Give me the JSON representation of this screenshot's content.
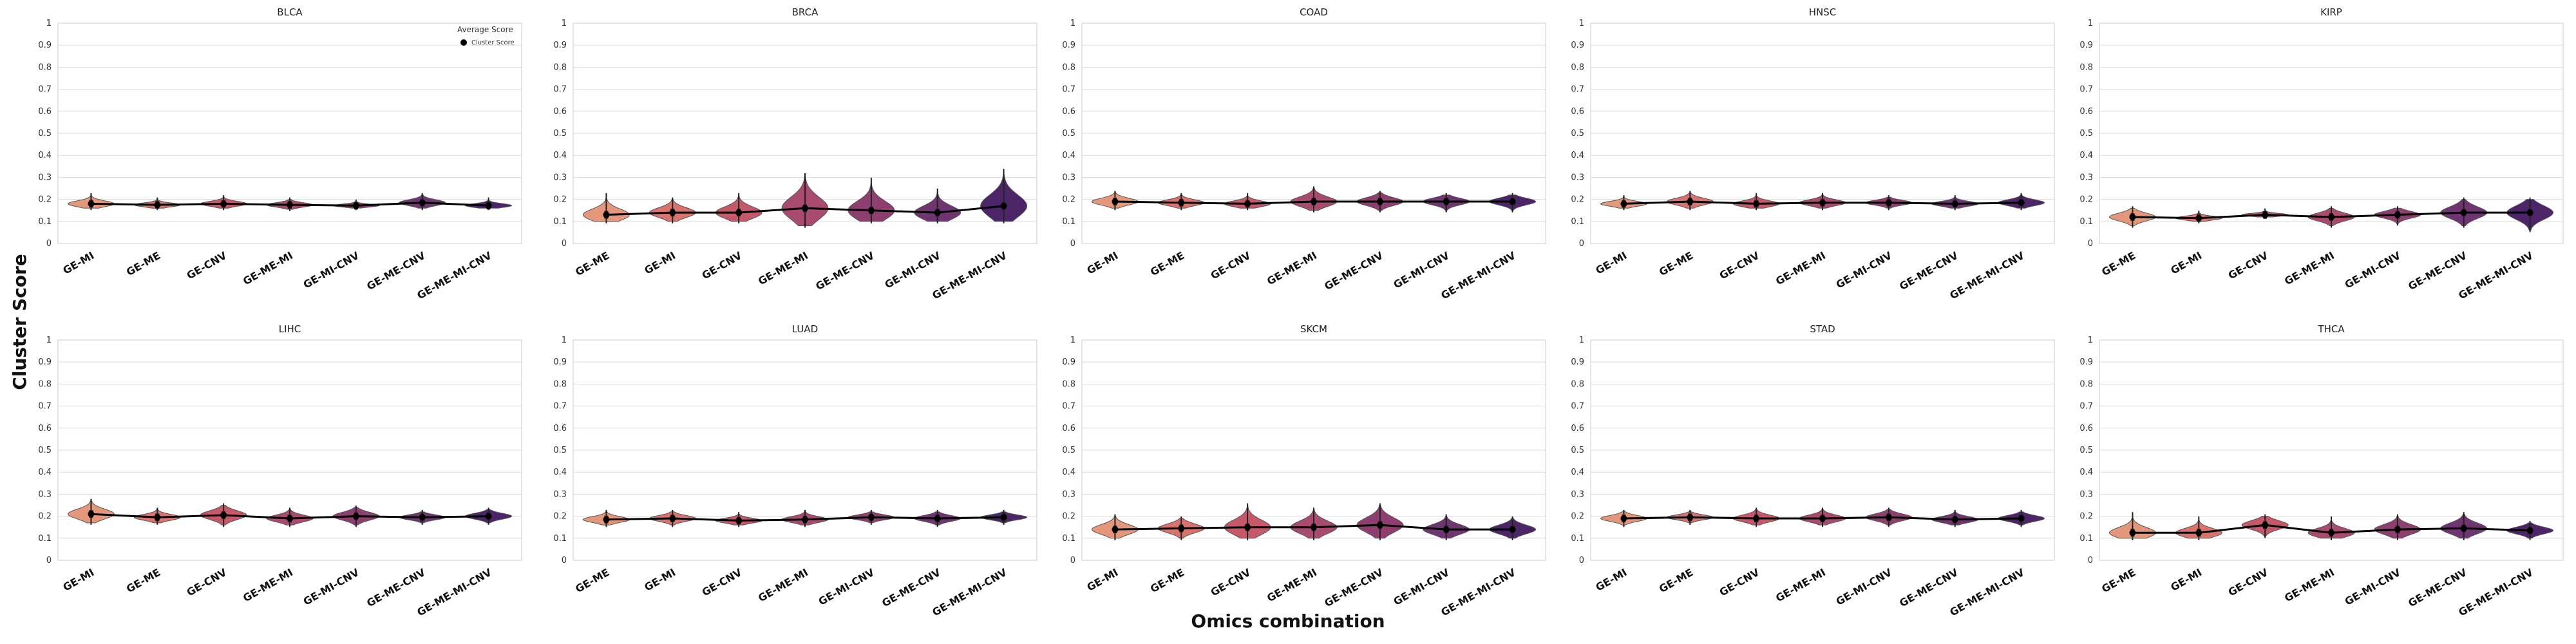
{
  "figure": {
    "ylabel": "Cluster Score",
    "xlabel": "Omics combination"
  },
  "legend": {
    "title": "Average Score",
    "entry": "Cluster Score",
    "placement": "top-right of first panel"
  },
  "palette": [
    "#e5977b",
    "#d8736e",
    "#c5596a",
    "#a94b6f",
    "#8e3f70",
    "#6f3570",
    "#4b2568"
  ],
  "chart_data": [
    {
      "type": "violin",
      "title": "BLCA",
      "ylim": [
        0,
        1
      ],
      "grid": true,
      "yticks": [
        "0",
        "0.1",
        "0.2",
        "0.3",
        "0.4",
        "0.5",
        "0.6",
        "0.7",
        "0.8",
        "0.9",
        "1"
      ],
      "categories": [
        "GE-MI",
        "GE-ME",
        "GE-CNV",
        "GE-ME-MI",
        "GE-MI-CNV",
        "GE-ME-CNV",
        "GE-ME-MI-CNV"
      ],
      "means": [
        0.18,
        0.175,
        0.18,
        0.175,
        0.172,
        0.185,
        0.172
      ],
      "ranges": [
        [
          0.16,
          0.22
        ],
        [
          0.16,
          0.2
        ],
        [
          0.16,
          0.21
        ],
        [
          0.155,
          0.2
        ],
        [
          0.16,
          0.19
        ],
        [
          0.16,
          0.22
        ],
        [
          0.16,
          0.2
        ]
      ]
    },
    {
      "type": "violin",
      "title": "BRCA",
      "ylim": [
        0,
        1
      ],
      "grid": true,
      "yticks": [
        "0",
        "0.1",
        "0.2",
        "0.3",
        "0.4",
        "0.5",
        "0.6",
        "0.7",
        "0.8",
        "0.9",
        "1"
      ],
      "categories": [
        "GE-ME",
        "GE-MI",
        "GE-CNV",
        "GE-ME-MI",
        "GE-ME-CNV",
        "GE-MI-CNV",
        "GE-ME-MI-CNV"
      ],
      "means": [
        0.13,
        0.14,
        0.14,
        0.16,
        0.15,
        0.14,
        0.17
      ],
      "ranges": [
        [
          0.1,
          0.22
        ],
        [
          0.1,
          0.2
        ],
        [
          0.1,
          0.22
        ],
        [
          0.08,
          0.31
        ],
        [
          0.1,
          0.29
        ],
        [
          0.1,
          0.24
        ],
        [
          0.1,
          0.33
        ]
      ]
    },
    {
      "type": "violin",
      "title": "COAD",
      "ylim": [
        0,
        1
      ],
      "grid": true,
      "yticks": [
        "0",
        "0.1",
        "0.2",
        "0.3",
        "0.4",
        "0.5",
        "0.6",
        "0.7",
        "0.8",
        "0.9",
        "1"
      ],
      "categories": [
        "GE-MI",
        "GE-ME",
        "GE-CNV",
        "GE-ME-MI",
        "GE-ME-CNV",
        "GE-MI-CNV",
        "GE-ME-MI-CNV"
      ],
      "means": [
        0.19,
        0.185,
        0.18,
        0.19,
        0.19,
        0.19,
        0.19
      ],
      "ranges": [
        [
          0.16,
          0.23
        ],
        [
          0.16,
          0.22
        ],
        [
          0.16,
          0.22
        ],
        [
          0.15,
          0.25
        ],
        [
          0.15,
          0.23
        ],
        [
          0.15,
          0.22
        ],
        [
          0.15,
          0.22
        ]
      ]
    },
    {
      "type": "violin",
      "title": "HNSC",
      "ylim": [
        0,
        1
      ],
      "grid": true,
      "yticks": [
        "0",
        "0.1",
        "0.2",
        "0.3",
        "0.4",
        "0.5",
        "0.6",
        "0.7",
        "0.8",
        "0.9",
        "1"
      ],
      "categories": [
        "GE-MI",
        "GE-ME",
        "GE-CNV",
        "GE-ME-MI",
        "GE-MI-CNV",
        "GE-ME-CNV",
        "GE-ME-MI-CNV"
      ],
      "means": [
        0.18,
        0.19,
        0.18,
        0.185,
        0.185,
        0.18,
        0.185
      ],
      "ranges": [
        [
          0.16,
          0.21
        ],
        [
          0.16,
          0.23
        ],
        [
          0.16,
          0.22
        ],
        [
          0.16,
          0.22
        ],
        [
          0.16,
          0.21
        ],
        [
          0.16,
          0.21
        ],
        [
          0.16,
          0.22
        ]
      ]
    },
    {
      "type": "violin",
      "title": "KIRP",
      "ylim": [
        0,
        1
      ],
      "grid": true,
      "yticks": [
        "0",
        "0.1",
        "0.2",
        "0.3",
        "0.4",
        "0.5",
        "0.6",
        "0.7",
        "0.8",
        "0.9",
        "1"
      ],
      "categories": [
        "GE-ME",
        "GE-MI",
        "GE-CNV",
        "GE-ME-MI",
        "GE-MI-CNV",
        "GE-ME-CNV",
        "GE-ME-MI-CNV"
      ],
      "means": [
        0.12,
        0.115,
        0.13,
        0.12,
        0.13,
        0.14,
        0.14
      ],
      "ranges": [
        [
          0.08,
          0.16
        ],
        [
          0.1,
          0.14
        ],
        [
          0.12,
          0.15
        ],
        [
          0.08,
          0.16
        ],
        [
          0.09,
          0.16
        ],
        [
          0.08,
          0.2
        ],
        [
          0.06,
          0.2
        ]
      ]
    },
    {
      "type": "violin",
      "title": "LIHC",
      "ylim": [
        0,
        1
      ],
      "grid": true,
      "yticks": [
        "0",
        "0.1",
        "0.2",
        "0.3",
        "0.4",
        "0.5",
        "0.6",
        "0.7",
        "0.8",
        "0.9",
        "1"
      ],
      "categories": [
        "GE-MI",
        "GE-ME",
        "GE-CNV",
        "GE-ME-MI",
        "GE-MI-CNV",
        "GE-ME-CNV",
        "GE-ME-MI-CNV"
      ],
      "means": [
        0.21,
        0.195,
        0.205,
        0.19,
        0.2,
        0.195,
        0.2
      ],
      "ranges": [
        [
          0.17,
          0.27
        ],
        [
          0.17,
          0.23
        ],
        [
          0.16,
          0.25
        ],
        [
          0.16,
          0.23
        ],
        [
          0.16,
          0.24
        ],
        [
          0.17,
          0.22
        ],
        [
          0.17,
          0.23
        ]
      ]
    },
    {
      "type": "violin",
      "title": "LUAD",
      "ylim": [
        0,
        1
      ],
      "grid": true,
      "yticks": [
        "0",
        "0.1",
        "0.2",
        "0.3",
        "0.4",
        "0.5",
        "0.6",
        "0.7",
        "0.8",
        "0.9",
        "1"
      ],
      "categories": [
        "GE-ME",
        "GE-MI",
        "GE-CNV",
        "GE-ME-MI",
        "GE-MI-CNV",
        "GE-ME-CNV",
        "GE-ME-MI-CNV"
      ],
      "means": [
        0.185,
        0.19,
        0.18,
        0.185,
        0.195,
        0.19,
        0.195
      ],
      "ranges": [
        [
          0.16,
          0.22
        ],
        [
          0.16,
          0.22
        ],
        [
          0.16,
          0.21
        ],
        [
          0.16,
          0.22
        ],
        [
          0.17,
          0.22
        ],
        [
          0.16,
          0.22
        ],
        [
          0.17,
          0.22
        ]
      ]
    },
    {
      "type": "violin",
      "title": "SKCM",
      "ylim": [
        0,
        1
      ],
      "grid": true,
      "yticks": [
        "0",
        "0.1",
        "0.2",
        "0.3",
        "0.4",
        "0.5",
        "0.6",
        "0.7",
        "0.8",
        "0.9",
        "1"
      ],
      "categories": [
        "GE-MI",
        "GE-ME",
        "GE-CNV",
        "GE-ME-MI",
        "GE-ME-CNV",
        "GE-MI-CNV",
        "GE-ME-MI-CNV"
      ],
      "means": [
        0.14,
        0.145,
        0.15,
        0.15,
        0.16,
        0.14,
        0.14
      ],
      "ranges": [
        [
          0.1,
          0.2
        ],
        [
          0.1,
          0.19
        ],
        [
          0.1,
          0.25
        ],
        [
          0.1,
          0.23
        ],
        [
          0.1,
          0.25
        ],
        [
          0.1,
          0.2
        ],
        [
          0.1,
          0.19
        ]
      ]
    },
    {
      "type": "violin",
      "title": "STAD",
      "ylim": [
        0,
        1
      ],
      "grid": true,
      "yticks": [
        "0",
        "0.1",
        "0.2",
        "0.3",
        "0.4",
        "0.5",
        "0.6",
        "0.7",
        "0.8",
        "0.9",
        "1"
      ],
      "categories": [
        "GE-MI",
        "GE-ME",
        "GE-CNV",
        "GE-ME-MI",
        "GE-MI-CNV",
        "GE-ME-CNV",
        "GE-ME-MI-CNV"
      ],
      "means": [
        0.19,
        0.195,
        0.19,
        0.19,
        0.195,
        0.185,
        0.19
      ],
      "ranges": [
        [
          0.16,
          0.22
        ],
        [
          0.17,
          0.22
        ],
        [
          0.16,
          0.23
        ],
        [
          0.16,
          0.23
        ],
        [
          0.16,
          0.23
        ],
        [
          0.16,
          0.22
        ],
        [
          0.16,
          0.22
        ]
      ]
    },
    {
      "type": "violin",
      "title": "THCA",
      "ylim": [
        0,
        1
      ],
      "grid": true,
      "yticks": [
        "0",
        "0.1",
        "0.2",
        "0.3",
        "0.4",
        "0.5",
        "0.6",
        "0.7",
        "0.8",
        "0.9",
        "1"
      ],
      "categories": [
        "GE-ME",
        "GE-MI",
        "GE-CNV",
        "GE-ME-MI",
        "GE-MI-CNV",
        "GE-ME-CNV",
        "GE-ME-MI-CNV"
      ],
      "means": [
        0.125,
        0.125,
        0.16,
        0.125,
        0.14,
        0.145,
        0.135
      ],
      "ranges": [
        [
          0.1,
          0.21
        ],
        [
          0.1,
          0.19
        ],
        [
          0.11,
          0.2
        ],
        [
          0.1,
          0.19
        ],
        [
          0.1,
          0.2
        ],
        [
          0.1,
          0.21
        ],
        [
          0.1,
          0.17
        ]
      ]
    }
  ]
}
